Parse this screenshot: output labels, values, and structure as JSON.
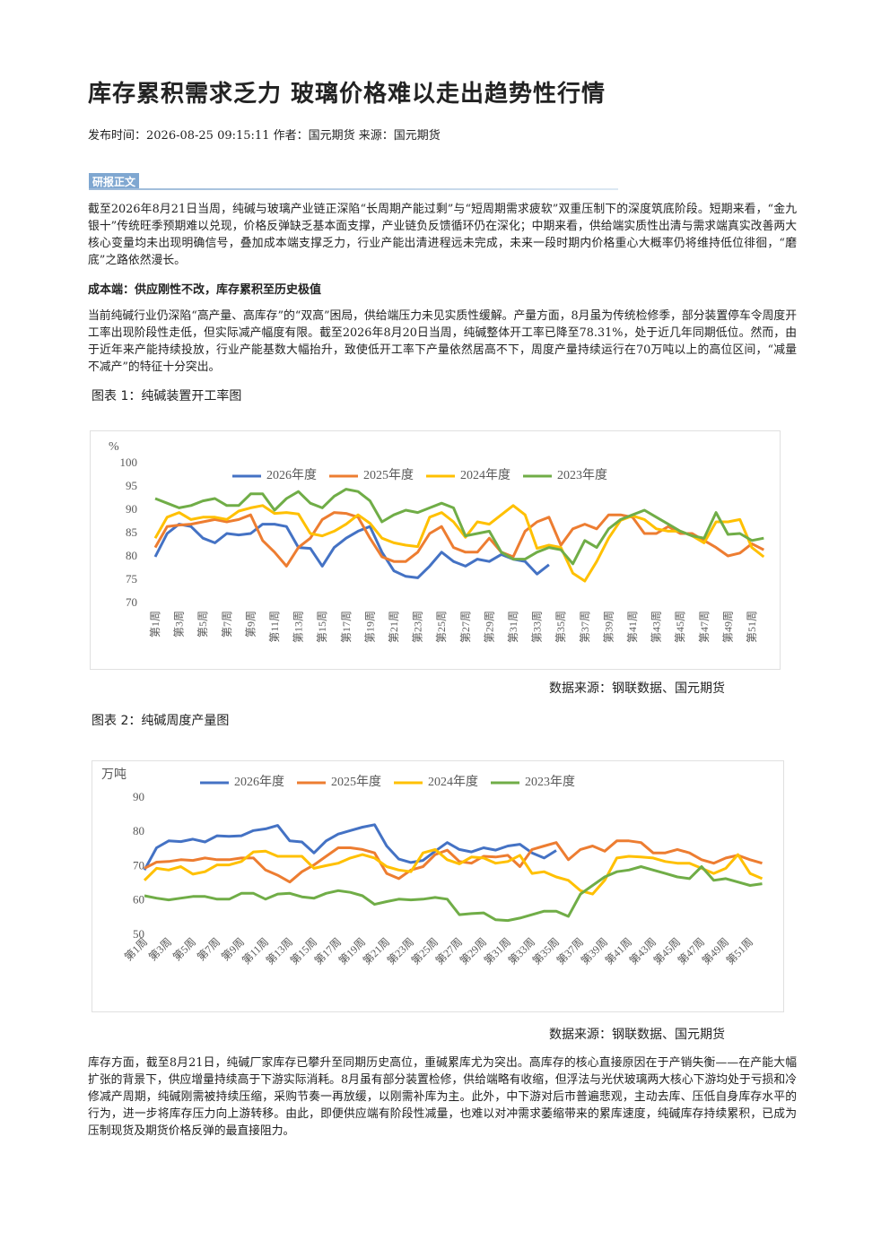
{
  "header": {
    "title": "库存累积需求乏力 玻璃价格难以走出趋势性行情",
    "meta": "发布时间：2026-08-25 09:15:11 作者：国元期货 来源：国元期货"
  },
  "section_tag": "研报正文",
  "paragraphs": [
    "截至2026年8月21日当周，纯碱与玻璃产业链正深陷“长周期产能过剩”与“短周期需求疲软”双重压制下的深度筑底阶段。短期来看，“金九银十”传统旺季预期难以兑现，价格反弹缺乏基本面支撑，产业链负反馈循环仍在深化；中期来看，供给端实质性出清与需求端真实改善两大核心变量均未出现明确信号，叠加成本端支撑乏力，行业产能出清进程远未完成，未来一段时期内价格重心大概率仍将维持低位徘徊，“磨底”之路依然漫长。",
    "当前纯碱行业仍深陷“高产量、高库存”的“双高”困局，供给端压力未见实质性缓解。产量方面，8月虽为传统检修季，部分装置停车令周度开工率出现阶段性走低，但实际减产幅度有限。截至2026年8月20日当周，纯碱整体开工率已降至78.31%，处于近几年同期低位。然而，由于近年来产能持续投放，行业产能基数大幅抬升，致使低开工率下产量依然居高不下，周度产量持续运行在70万吨以上的高位区间，“减量不减产”的特征十分突出。",
    "库存方面，截至8月21日，纯碱厂家库存已攀升至同期历史高位，重碱累库尤为突出。高库存的核心直接原因在于产销失衡——在产能大幅扩张的背景下，供应增量持续高于下游实际消耗。8月虽有部分装置检修，供给端略有收缩，但浮法与光伏玻璃两大核心下游均处于亏损和冷修减产周期，纯碱刚需被持续压缩，采购节奏一再放缓，以刚需补库为主。此外，中下游对后市普遍悲观，主动去库、压低自身库存水平的行为，进一步将库存压力向上游转移。由此，即便供应端有阶段性减量，也难以对冲需求萎缩带来的累库速度，纯碱库存持续累积，已成为压制现货及期货价格反弹的最直接阻力。"
  ],
  "heading": "成本端：供应刚性不改，库存累积至历史极值",
  "chart_data": [
    {
      "type": "line",
      "title": "图表 1：纯碱装置开工率图",
      "y_label": "%",
      "source": "数据来源：钢联数据、国元期货",
      "legend": "top",
      "grid": false,
      "label_rotation": -90,
      "categories": [
        "第1周",
        null,
        "第3周",
        null,
        "第5周",
        null,
        "第7周",
        null,
        "第9周",
        null,
        "第11周",
        null,
        "第13周",
        null,
        "第15周",
        null,
        "第17周",
        null,
        "第19周",
        null,
        "第21周",
        null,
        "第23周",
        null,
        "第25周",
        null,
        "第27周",
        null,
        "第29周",
        null,
        "第31周",
        null,
        "第33周",
        null,
        "第35周",
        null,
        "第37周",
        null,
        "第39周",
        null,
        "第41周",
        null,
        "第43周",
        null,
        "第45周",
        null,
        "第47周",
        null,
        "第49周",
        null,
        "第51周",
        null
      ],
      "ylim": [
        70,
        100
      ],
      "yticks": [
        70,
        75,
        80,
        85,
        90,
        95,
        100
      ],
      "series": [
        {
          "name": "2026年度",
          "color": "#4472c4",
          "values": [
            80,
            85,
            87,
            86.5,
            84,
            83,
            85,
            84.7,
            85,
            87,
            87,
            86.5,
            82,
            81.8,
            78,
            82,
            84,
            85.5,
            86.5,
            81,
            77,
            75.8,
            75.5,
            78,
            81,
            79,
            78,
            79.5,
            79,
            80.5,
            79.5,
            79,
            76.3,
            78.3,
            null,
            null,
            null,
            null,
            null,
            null,
            null,
            null,
            null,
            null,
            null,
            null,
            null,
            null,
            null,
            null,
            null,
            null
          ]
        },
        {
          "name": "2025年度",
          "color": "#ed7d31",
          "values": [
            82,
            86.5,
            86.8,
            87,
            87.5,
            88,
            87.5,
            88,
            89,
            83.5,
            81,
            78,
            82,
            84,
            88,
            89.5,
            89.3,
            88.5,
            84,
            80,
            79,
            79,
            81,
            85,
            86.5,
            82,
            81,
            81,
            84,
            81,
            80,
            85.5,
            87.5,
            88.5,
            82.5,
            86,
            87,
            86,
            89,
            89,
            88.5,
            85,
            85,
            86.5,
            85,
            85,
            83.5,
            82,
            80.2,
            80.8,
            82.8,
            81.5
          ]
        },
        {
          "name": "2024年度",
          "color": "#ffc000",
          "values": [
            84,
            88.5,
            89.5,
            88,
            88.5,
            88.5,
            88,
            89.8,
            90.5,
            91,
            89.3,
            89.5,
            89.2,
            85,
            84.5,
            85.5,
            87,
            89,
            87.2,
            84,
            83,
            82.5,
            82.2,
            88.5,
            89.5,
            87.5,
            84.2,
            87.5,
            87,
            89,
            91,
            89,
            81.8,
            82.5,
            82,
            76.5,
            74.8,
            79,
            84,
            87.8,
            88.8,
            88,
            86,
            85.5,
            85.5,
            84.5,
            83,
            87.5,
            87.5,
            88,
            82,
            80
          ]
        },
        {
          "name": "2023年度",
          "color": "#70ad47",
          "values": [
            92.5,
            91.5,
            90.5,
            91,
            92,
            92.5,
            91,
            91,
            93.5,
            93.5,
            90,
            92.5,
            94,
            91.5,
            90.5,
            93,
            94.5,
            94,
            92,
            87.5,
            89,
            90,
            89.5,
            90.5,
            91.5,
            90.5,
            84.5,
            85,
            85.5,
            81,
            79.5,
            79.5,
            81,
            82,
            81.5,
            78.5,
            83.5,
            82,
            86,
            88,
            89,
            90,
            88.5,
            87,
            85.5,
            84.5,
            84,
            89.5,
            84.8,
            85,
            83.5,
            84
          ]
        }
      ]
    },
    {
      "type": "line",
      "title": "图表 2：纯碱周度产量图",
      "y_label": "万吨",
      "source": "数据来源：钢联数据、国元期货",
      "legend": "top",
      "grid": false,
      "label_rotation": -45,
      "categories": [
        "第1周",
        null,
        "第3周",
        null,
        "第5周",
        null,
        "第7周",
        null,
        "第9周",
        null,
        "第11周",
        null,
        "第13周",
        null,
        "第15周",
        null,
        "第17周",
        null,
        "第19周",
        null,
        "第21周",
        null,
        "第23周",
        null,
        "第25周",
        null,
        "第27周",
        null,
        "第29周",
        null,
        "第31周",
        null,
        "第33周",
        null,
        "第35周",
        null,
        "第37周",
        null,
        "第39周",
        null,
        "第41周",
        null,
        "第43周",
        null,
        "第45周",
        null,
        "第47周",
        null,
        "第49周",
        null,
        "第51周",
        null
      ],
      "ylim": [
        50,
        90
      ],
      "yticks": [
        50,
        60,
        70,
        80,
        90
      ],
      "series": [
        {
          "name": "2026年度",
          "color": "#4472c4",
          "values": [
            69,
            75.5,
            77.5,
            77.3,
            78,
            77.2,
            79,
            78.8,
            79,
            80.5,
            81,
            82,
            77.5,
            77.2,
            74,
            77.5,
            79.5,
            80.5,
            81.5,
            82.2,
            76,
            72.2,
            71.2,
            71.8,
            74.5,
            77,
            75,
            74.3,
            75.5,
            74.8,
            76,
            76.5,
            74,
            72.5,
            74.7,
            null,
            null,
            null,
            null,
            null,
            null,
            null,
            null,
            null,
            null,
            null,
            null,
            null,
            null,
            null,
            null,
            null
          ]
        },
        {
          "name": "2025年度",
          "color": "#ed7d31",
          "values": [
            69.5,
            71.3,
            71.5,
            72,
            71.8,
            72.5,
            72,
            72,
            72.5,
            72.5,
            69,
            67.5,
            65.5,
            68.5,
            70.5,
            73,
            75.5,
            75.5,
            75,
            74,
            68,
            66.5,
            69,
            70,
            73.5,
            74.8,
            71.5,
            71,
            73,
            72.8,
            73.3,
            70,
            75,
            76,
            77,
            72,
            75,
            76,
            74.5,
            77.5,
            77.5,
            77,
            74,
            74,
            75,
            74,
            72,
            71,
            72.5,
            73.3,
            72,
            71
          ]
        },
        {
          "name": "2024年度",
          "color": "#ffc000",
          "values": [
            66,
            69.5,
            69,
            70,
            67.8,
            68.5,
            70.5,
            70.5,
            71.5,
            74.3,
            74.5,
            73,
            73,
            73,
            69.5,
            70.3,
            71,
            72.5,
            73.5,
            72.5,
            70,
            69,
            68.5,
            74,
            75,
            72,
            70.8,
            72.8,
            72.5,
            71,
            71.5,
            73.3,
            68,
            68.5,
            67,
            66,
            63,
            62,
            66,
            72.5,
            73,
            72.8,
            72.5,
            71.5,
            71,
            71,
            69.5,
            68,
            69.5,
            73.5,
            68,
            66.5
          ]
        },
        {
          "name": "2023年度",
          "color": "#70ad47",
          "values": [
            61.5,
            60.8,
            60.3,
            60.8,
            61.3,
            61.3,
            60.5,
            60.5,
            62.2,
            62.2,
            60.5,
            62,
            62.2,
            61.2,
            60.8,
            62.2,
            63,
            62.5,
            61.5,
            59,
            59.8,
            60.5,
            60.3,
            60.5,
            61,
            60.5,
            56,
            56.3,
            56.5,
            54.5,
            54.3,
            55,
            56,
            57,
            57,
            55.5,
            62,
            64.5,
            67,
            68.5,
            69,
            70,
            69,
            68,
            67,
            66.5,
            70,
            66,
            66.5,
            65.5,
            64.5,
            65
          ]
        }
      ]
    }
  ]
}
